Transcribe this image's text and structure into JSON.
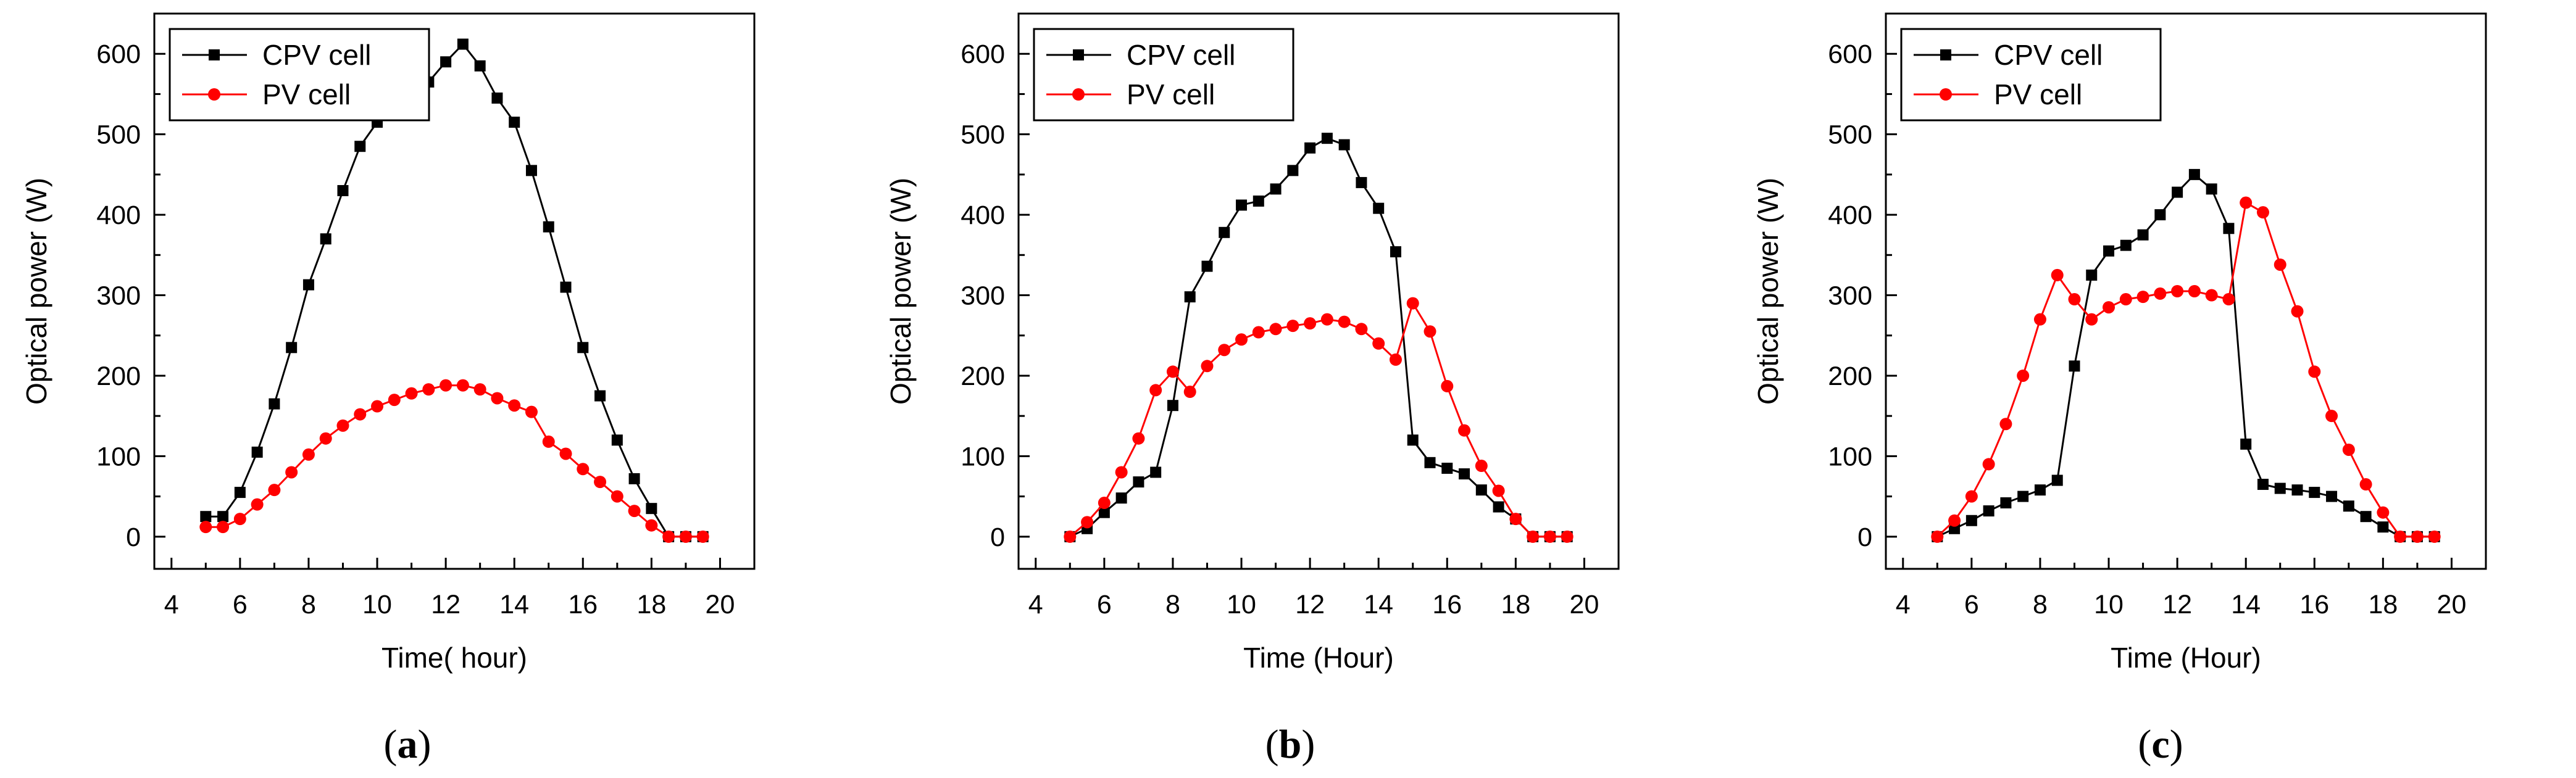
{
  "chart_data": [
    {
      "type": "line",
      "panel": "a",
      "caption_open": "(",
      "caption_letter": "a",
      "caption_close": ")",
      "title": "",
      "xlabel": "Time( hour)",
      "ylabel": "Optical power (W)",
      "xlim": [
        3.5,
        21
      ],
      "ylim": [
        -40,
        650
      ],
      "xticks": [
        4,
        6,
        8,
        10,
        12,
        14,
        16,
        18,
        20
      ],
      "yticks": [
        0,
        100,
        200,
        300,
        400,
        500,
        600
      ],
      "legend_position": "top-left",
      "series": [
        {
          "name": "CPV cell",
          "color": "#000000",
          "marker": "square",
          "x": [
            5,
            5.5,
            6,
            6.5,
            7,
            7.5,
            8,
            8.5,
            9,
            9.5,
            10,
            10.5,
            11,
            11.5,
            12,
            12.5,
            13,
            13.5,
            14,
            14.5,
            15,
            15.5,
            16,
            16.5,
            17,
            17.5,
            18,
            18.5,
            19,
            19.5
          ],
          "y": [
            25,
            25,
            55,
            105,
            165,
            235,
            313,
            370,
            430,
            485,
            515,
            525,
            545,
            565,
            590,
            612,
            585,
            545,
            515,
            455,
            385,
            310,
            235,
            175,
            120,
            72,
            35,
            0,
            0,
            0
          ]
        },
        {
          "name": "PV cell",
          "color": "#ff0000",
          "marker": "circle",
          "x": [
            5,
            5.5,
            6,
            6.5,
            7,
            7.5,
            8,
            8.5,
            9,
            9.5,
            10,
            10.5,
            11,
            11.5,
            12,
            12.5,
            13,
            13.5,
            14,
            14.5,
            15,
            15.5,
            16,
            16.5,
            17,
            17.5,
            18,
            18.5,
            19,
            19.5
          ],
          "y": [
            12,
            12,
            22,
            40,
            58,
            80,
            102,
            122,
            138,
            152,
            162,
            170,
            178,
            183,
            188,
            188,
            183,
            172,
            163,
            155,
            118,
            103,
            84,
            68,
            50,
            32,
            14,
            0,
            0,
            0
          ]
        }
      ]
    },
    {
      "type": "line",
      "panel": "b",
      "caption_open": "(",
      "caption_letter": "b",
      "caption_close": ")",
      "title": "",
      "xlabel": "Time (Hour)",
      "ylabel": "Optical power (W)",
      "xlim": [
        3.5,
        21
      ],
      "ylim": [
        -40,
        650
      ],
      "xticks": [
        4,
        6,
        8,
        10,
        12,
        14,
        16,
        18,
        20
      ],
      "yticks": [
        0,
        100,
        200,
        300,
        400,
        500,
        600
      ],
      "legend_position": "top-left",
      "series": [
        {
          "name": "CPV cell",
          "color": "#000000",
          "marker": "square",
          "x": [
            5,
            5.5,
            6,
            6.5,
            7,
            7.5,
            8,
            8.5,
            9,
            9.5,
            10,
            10.5,
            11,
            11.5,
            12,
            12.5,
            13,
            13.5,
            14,
            14.5,
            15,
            15.5,
            16,
            16.5,
            17,
            17.5,
            18,
            18.5,
            19,
            19.5
          ],
          "y": [
            0,
            10,
            30,
            48,
            68,
            80,
            163,
            298,
            336,
            378,
            412,
            417,
            432,
            455,
            483,
            495,
            487,
            440,
            408,
            354,
            120,
            92,
            85,
            78,
            58,
            37,
            22,
            0,
            0,
            0
          ]
        },
        {
          "name": "PV cell",
          "color": "#ff0000",
          "marker": "circle",
          "x": [
            5,
            5.5,
            6,
            6.5,
            7,
            7.5,
            8,
            8.5,
            9,
            9.5,
            10,
            10.5,
            11,
            11.5,
            12,
            12.5,
            13,
            13.5,
            14,
            14.5,
            15,
            15.5,
            16,
            16.5,
            17,
            17.5,
            18,
            18.5,
            19,
            19.5
          ],
          "y": [
            0,
            18,
            42,
            80,
            122,
            182,
            205,
            180,
            212,
            232,
            245,
            254,
            258,
            262,
            265,
            270,
            267,
            258,
            240,
            220,
            290,
            255,
            187,
            132,
            88,
            57,
            22,
            0,
            0,
            0
          ]
        }
      ]
    },
    {
      "type": "line",
      "panel": "c",
      "caption_open": "(",
      "caption_letter": "c",
      "caption_close": ")",
      "title": "",
      "xlabel": "Time (Hour)",
      "ylabel": "Optical power (W)",
      "xlim": [
        3.5,
        21
      ],
      "ylim": [
        -40,
        650
      ],
      "xticks": [
        4,
        6,
        8,
        10,
        12,
        14,
        16,
        18,
        20
      ],
      "yticks": [
        0,
        100,
        200,
        300,
        400,
        500,
        600
      ],
      "legend_position": "top-left",
      "series": [
        {
          "name": "CPV cell",
          "color": "#000000",
          "marker": "square",
          "x": [
            5,
            5.5,
            6,
            6.5,
            7,
            7.5,
            8,
            8.5,
            9,
            9.5,
            10,
            10.5,
            11,
            11.5,
            12,
            12.5,
            13,
            13.5,
            14,
            14.5,
            15,
            15.5,
            16,
            16.5,
            17,
            17.5,
            18,
            18.5,
            19,
            19.5
          ],
          "y": [
            0,
            10,
            20,
            32,
            42,
            50,
            58,
            70,
            212,
            325,
            355,
            362,
            375,
            400,
            428,
            450,
            432,
            383,
            115,
            65,
            60,
            58,
            55,
            50,
            38,
            25,
            12,
            0,
            0,
            0
          ]
        },
        {
          "name": "PV cell",
          "color": "#ff0000",
          "marker": "circle",
          "x": [
            5,
            5.5,
            6,
            6.5,
            7,
            7.5,
            8,
            8.5,
            9,
            9.5,
            10,
            10.5,
            11,
            11.5,
            12,
            12.5,
            13,
            13.5,
            14,
            14.5,
            15,
            15.5,
            16,
            16.5,
            17,
            17.5,
            18,
            18.5,
            19,
            19.5
          ],
          "y": [
            0,
            20,
            50,
            90,
            140,
            200,
            270,
            325,
            295,
            270,
            285,
            295,
            298,
            302,
            305,
            305,
            300,
            295,
            415,
            403,
            338,
            280,
            205,
            150,
            108,
            65,
            30,
            0,
            0,
            0
          ]
        }
      ]
    }
  ]
}
